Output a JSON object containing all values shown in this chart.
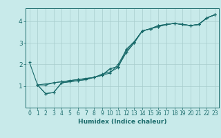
{
  "xlabel": "Humidex (Indice chaleur)",
  "ylabel": "",
  "bg_color": "#c8eaea",
  "grid_color": "#a8cccc",
  "line_color": "#1a6b6b",
  "xlim": [
    -0.5,
    23.5
  ],
  "ylim": [
    0.0,
    4.6
  ],
  "yticks": [
    1,
    2,
    3,
    4
  ],
  "xticks": [
    0,
    1,
    2,
    3,
    4,
    5,
    6,
    7,
    8,
    9,
    10,
    11,
    12,
    13,
    14,
    15,
    16,
    17,
    18,
    19,
    20,
    21,
    22,
    23
  ],
  "series": [
    {
      "x": [
        0,
        1,
        2,
        3,
        4,
        5,
        6,
        7,
        8,
        9,
        10,
        11,
        12,
        13,
        14,
        15,
        16,
        17,
        18,
        19,
        20,
        21,
        22,
        23
      ],
      "y": [
        2.1,
        1.05,
        1.05,
        1.15,
        1.2,
        1.25,
        1.3,
        1.35,
        1.4,
        1.5,
        1.8,
        1.9,
        2.55,
        3.0,
        3.55,
        3.65,
        3.75,
        3.85,
        3.9,
        3.85,
        3.8,
        3.85,
        4.15,
        4.3
      ]
    },
    {
      "x": [
        1,
        2,
        3,
        4,
        5,
        6,
        7,
        8,
        9,
        10,
        11,
        12,
        13,
        14,
        15,
        16,
        17,
        18,
        19,
        20,
        21,
        22,
        23
      ],
      "y": [
        1.05,
        0.65,
        0.7,
        1.15,
        1.2,
        1.25,
        1.3,
        1.4,
        1.5,
        1.6,
        2.0,
        2.65,
        3.05,
        3.55,
        3.65,
        3.8,
        3.85,
        3.9,
        3.85,
        3.8,
        3.85,
        4.15,
        4.3
      ]
    },
    {
      "x": [
        1,
        2,
        3,
        4,
        5,
        6,
        7,
        8,
        9,
        10,
        11,
        12,
        13,
        14,
        15,
        16,
        17,
        18,
        19,
        20,
        21,
        22,
        23
      ],
      "y": [
        1.05,
        0.65,
        0.7,
        1.15,
        1.2,
        1.25,
        1.3,
        1.4,
        1.55,
        1.65,
        1.85,
        2.7,
        3.05,
        3.55,
        3.65,
        3.8,
        3.85,
        3.9,
        3.85,
        3.8,
        3.85,
        4.15,
        4.3
      ]
    },
    {
      "x": [
        1,
        3,
        4,
        5,
        6,
        7,
        8,
        9,
        10,
        11,
        12,
        13,
        14,
        15,
        16,
        17,
        18,
        19,
        20,
        21,
        22,
        23
      ],
      "y": [
        1.05,
        1.15,
        1.2,
        1.25,
        1.3,
        1.35,
        1.4,
        1.5,
        1.8,
        1.9,
        2.55,
        3.0,
        3.55,
        3.65,
        3.75,
        3.85,
        3.9,
        3.85,
        3.8,
        3.85,
        4.15,
        4.3
      ]
    }
  ]
}
